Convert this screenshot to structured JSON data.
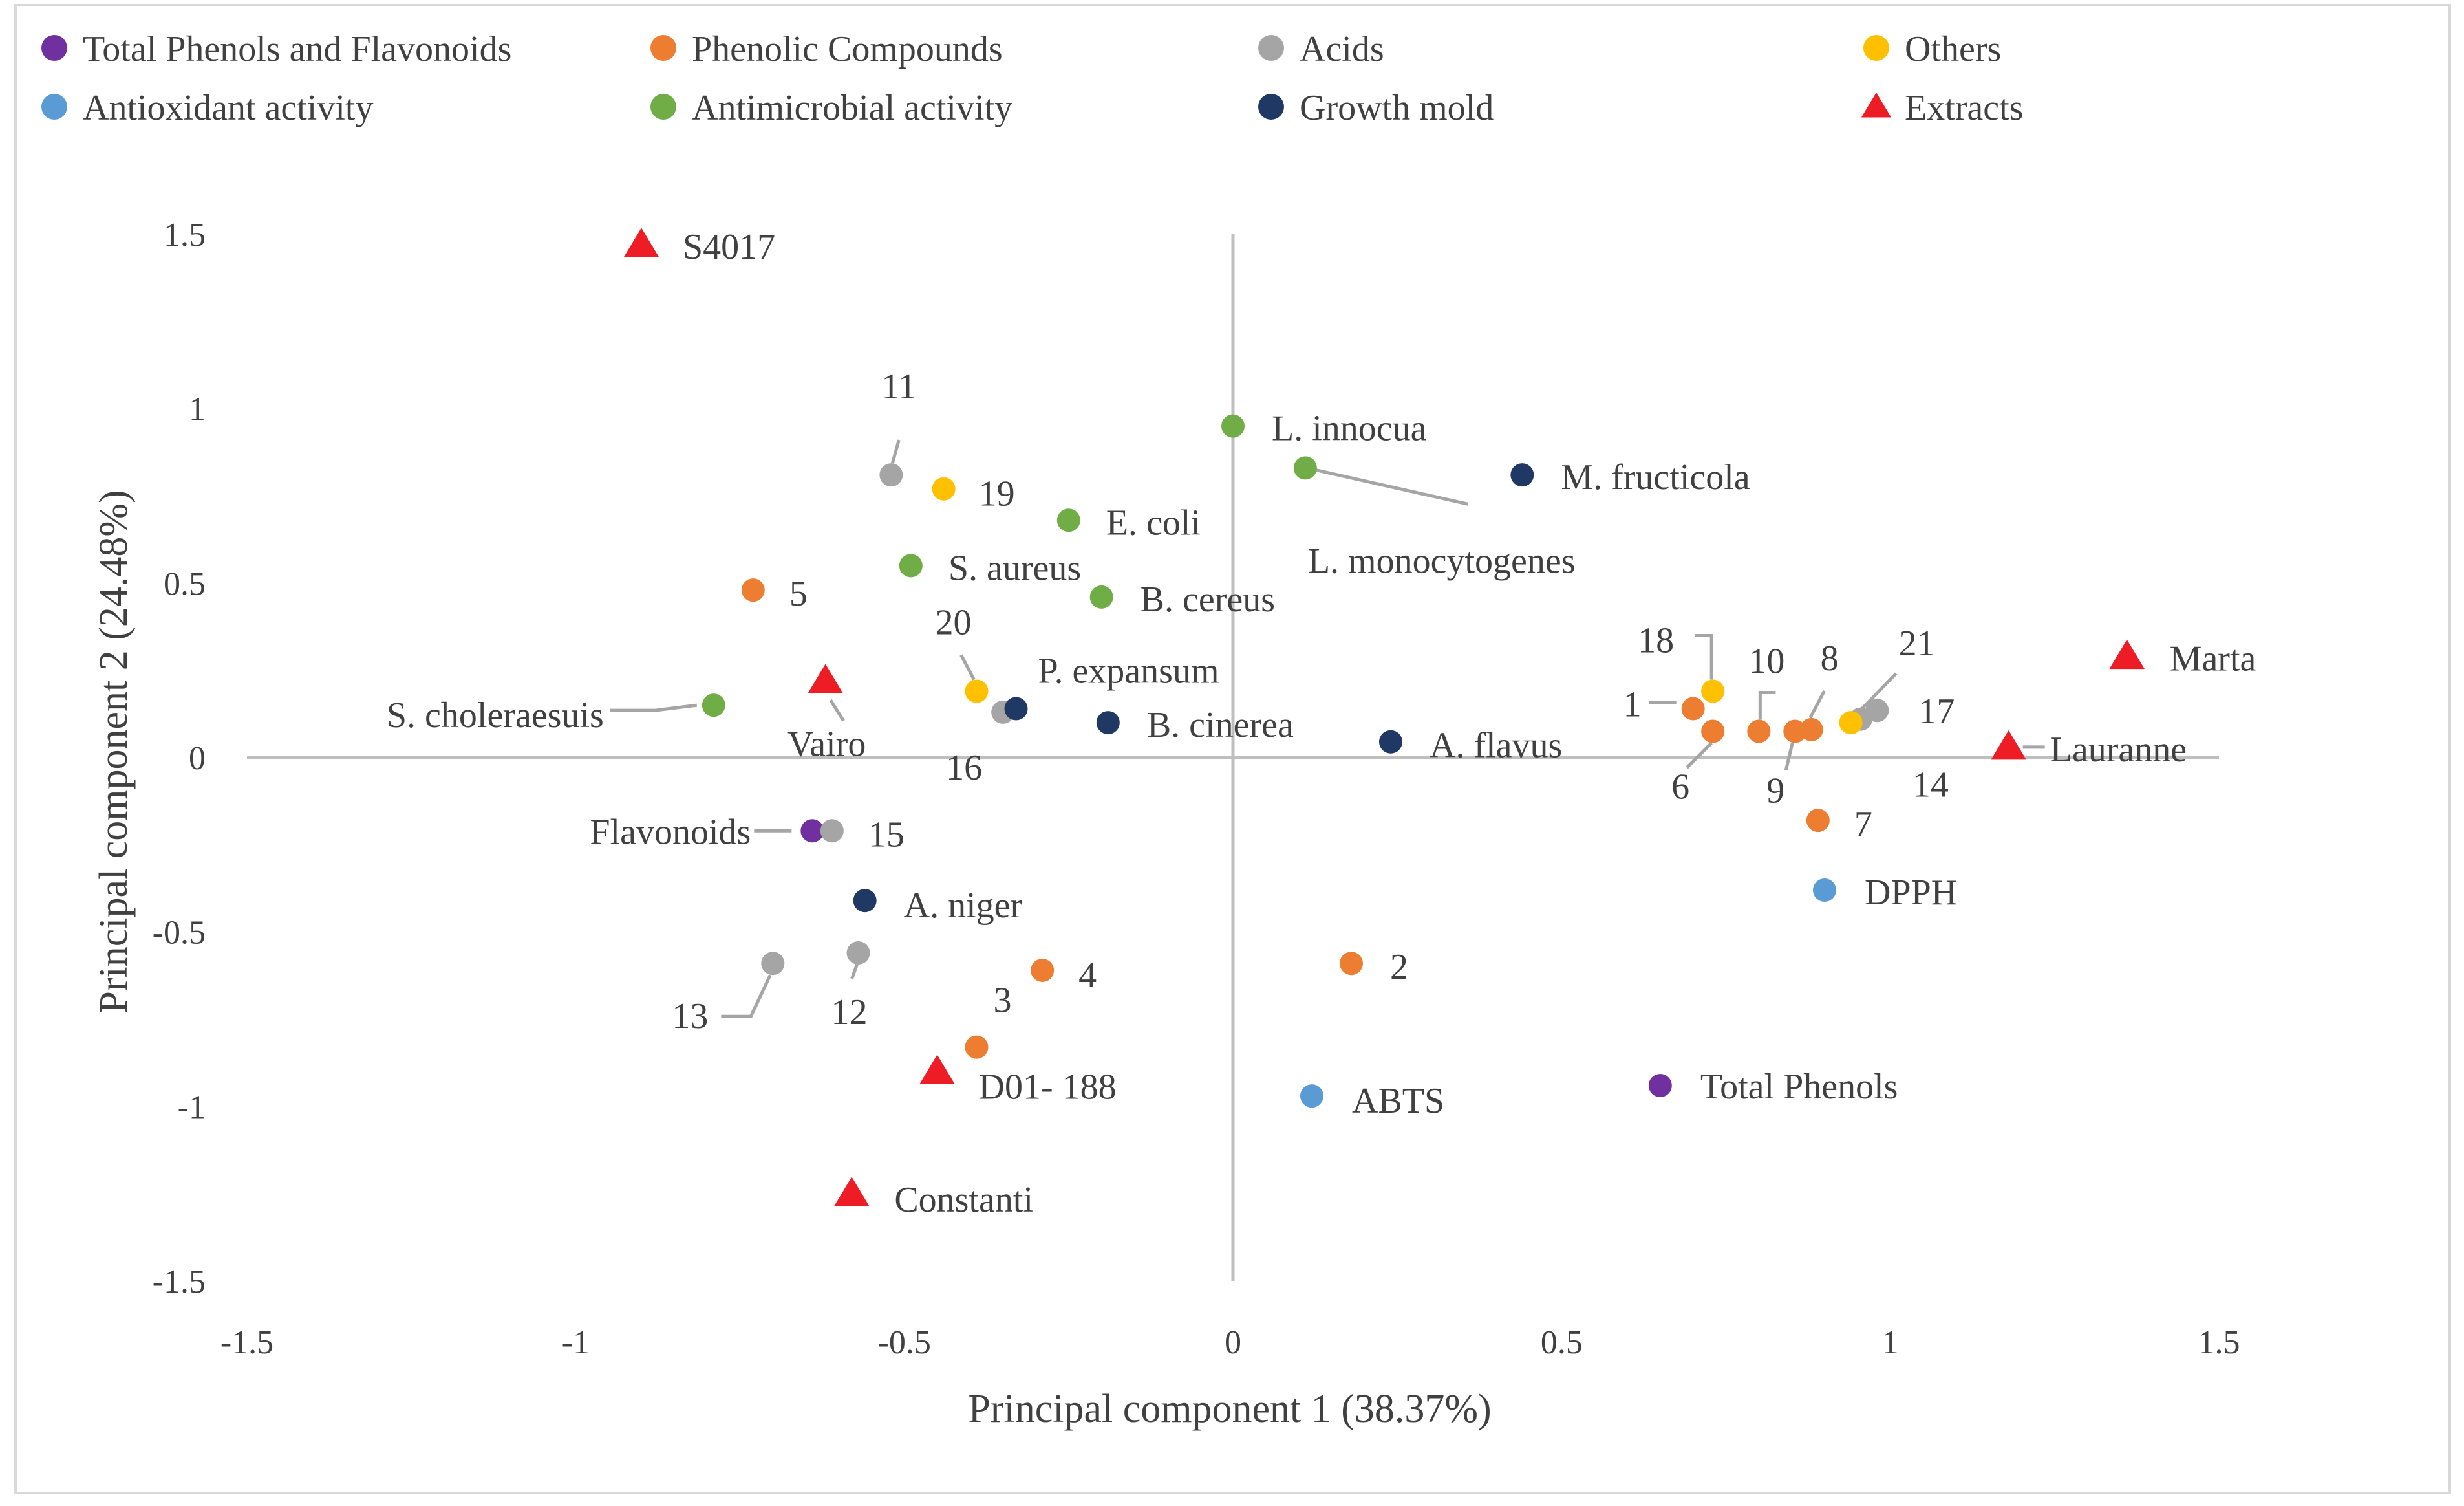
{
  "colors": {
    "total_phenols_flavonoids": "#7030A0",
    "phenolic_compounds": "#ED7D31",
    "acids": "#A5A5A5",
    "others": "#FFC000",
    "antioxidant": "#5B9BD5",
    "antimicrobial": "#70AD47",
    "growth_mold": "#1F3864",
    "extracts": "#EE1C25",
    "axis": "#BFBFBF",
    "leader": "#A5A5A5",
    "frame": "#D9D9D9",
    "text": "#404040"
  },
  "chart_data": {
    "type": "scatter",
    "title": "",
    "xlabel": "Principal component 1 (38.37%)",
    "ylabel": "Principal component 2 (24.48%)",
    "xlim": [
      -1.5,
      1.5
    ],
    "ylim": [
      -1.5,
      1.5
    ],
    "xticks": [
      -1.5,
      -1,
      -0.5,
      0,
      0.5,
      1,
      1.5
    ],
    "yticks": [
      -1.5,
      -1,
      -0.5,
      0,
      0.5,
      1,
      1.5
    ],
    "xtick_labels": [
      "-1.5",
      "-1",
      "-0.5",
      "0",
      "0.5",
      "1",
      "1.5"
    ],
    "ytick_labels": [
      "-1.5",
      "-1",
      "-0.5",
      "0",
      "0.5",
      "1",
      "1.5"
    ],
    "grid": false,
    "legend_position": "top",
    "legend": [
      {
        "key": "total_phenols_flavonoids",
        "label": "Total Phenols and Flavonoids",
        "shape": "circle"
      },
      {
        "key": "phenolic_compounds",
        "label": "Phenolic Compounds",
        "shape": "circle"
      },
      {
        "key": "acids",
        "label": "Acids",
        "shape": "circle"
      },
      {
        "key": "others",
        "label": "Others",
        "shape": "circle"
      },
      {
        "key": "antioxidant",
        "label": "Antioxidant activity",
        "shape": "circle"
      },
      {
        "key": "antimicrobial",
        "label": "Antimicrobial activity",
        "shape": "circle"
      },
      {
        "key": "growth_mold",
        "label": "Growth mold",
        "shape": "circle"
      },
      {
        "key": "extracts",
        "label": "Extracts",
        "shape": "triangle"
      }
    ],
    "series": [
      {
        "name": "Total Phenols and Flavonoids",
        "key": "total_phenols_flavonoids",
        "points": [
          {
            "label": "Flavonoids",
            "x": -0.64,
            "y": -0.21
          },
          {
            "label": "Total Phenols",
            "x": 0.65,
            "y": -0.94
          }
        ]
      },
      {
        "name": "Phenolic Compounds",
        "key": "phenolic_compounds",
        "points": [
          {
            "label": "1",
            "x": 0.7,
            "y": 0.14
          },
          {
            "label": "2",
            "x": 0.18,
            "y": -0.59
          },
          {
            "label": "3",
            "x": -0.39,
            "y": -0.83
          },
          {
            "label": "4",
            "x": -0.29,
            "y": -0.61
          },
          {
            "label": "5",
            "x": -0.73,
            "y": 0.48
          },
          {
            "label": "6",
            "x": 0.73,
            "y": 0.075
          },
          {
            "label": "7",
            "x": 0.89,
            "y": -0.18
          },
          {
            "label": "8",
            "x": 0.88,
            "y": 0.08
          },
          {
            "label": "9",
            "x": 0.855,
            "y": 0.075
          },
          {
            "label": "10",
            "x": 0.8,
            "y": 0.075
          }
        ]
      },
      {
        "name": "Acids",
        "key": "acids",
        "points": [
          {
            "label": "11",
            "x": -0.52,
            "y": 0.81
          },
          {
            "label": "12",
            "x": -0.57,
            "y": -0.56
          },
          {
            "label": "13",
            "x": -0.7,
            "y": -0.59
          },
          {
            "label": "14",
            "x": 0.955,
            "y": 0.11
          },
          {
            "label": "15",
            "x": -0.61,
            "y": -0.21
          },
          {
            "label": "16",
            "x": -0.35,
            "y": 0.13
          },
          {
            "label": "17",
            "x": 0.98,
            "y": 0.135
          }
        ]
      },
      {
        "name": "Others",
        "key": "others",
        "points": [
          {
            "label": "18",
            "x": 0.73,
            "y": 0.19
          },
          {
            "label": "19",
            "x": -0.44,
            "y": 0.77
          },
          {
            "label": "20",
            "x": -0.39,
            "y": 0.19
          },
          {
            "label": "21",
            "x": 0.94,
            "y": 0.1
          }
        ]
      },
      {
        "name": "Antioxidant activity",
        "key": "antioxidant",
        "points": [
          {
            "label": "DPPH",
            "x": 0.9,
            "y": -0.38
          },
          {
            "label": "ABTS",
            "x": 0.12,
            "y": -0.97
          }
        ]
      },
      {
        "name": "Antimicrobial activity",
        "key": "antimicrobial",
        "points": [
          {
            "label": "L. innocua",
            "x": 0.0,
            "y": 0.95
          },
          {
            "label": "L. monocytogenes",
            "x": 0.11,
            "y": 0.83
          },
          {
            "label": "E. coli",
            "x": -0.25,
            "y": 0.68
          },
          {
            "label": "S. aureus",
            "x": -0.49,
            "y": 0.55
          },
          {
            "label": "B. cereus",
            "x": -0.2,
            "y": 0.46
          },
          {
            "label": "S. choleraesuis",
            "x": -0.79,
            "y": 0.15
          }
        ]
      },
      {
        "name": "Growth mold",
        "key": "growth_mold",
        "points": [
          {
            "label": "M. fructicola",
            "x": 0.44,
            "y": 0.81
          },
          {
            "label": "P. expansum",
            "x": -0.33,
            "y": 0.14
          },
          {
            "label": "B. cinerea",
            "x": -0.19,
            "y": 0.1
          },
          {
            "label": "A. flavus",
            "x": 0.24,
            "y": 0.045
          },
          {
            "label": "A. niger",
            "x": -0.56,
            "y": -0.41
          }
        ]
      },
      {
        "name": "Extracts",
        "key": "extracts",
        "points": [
          {
            "label": "S4017",
            "x": -0.9,
            "y": 1.47
          },
          {
            "label": "Vairo",
            "x": -0.62,
            "y": 0.22
          },
          {
            "label": "D01- 188",
            "x": -0.45,
            "y": -0.9
          },
          {
            "label": "Constanti",
            "x": -0.58,
            "y": -1.25
          },
          {
            "label": "Marta",
            "x": 1.36,
            "y": 0.29
          },
          {
            "label": "Lauranne",
            "x": 1.18,
            "y": 0.03
          }
        ]
      }
    ]
  }
}
